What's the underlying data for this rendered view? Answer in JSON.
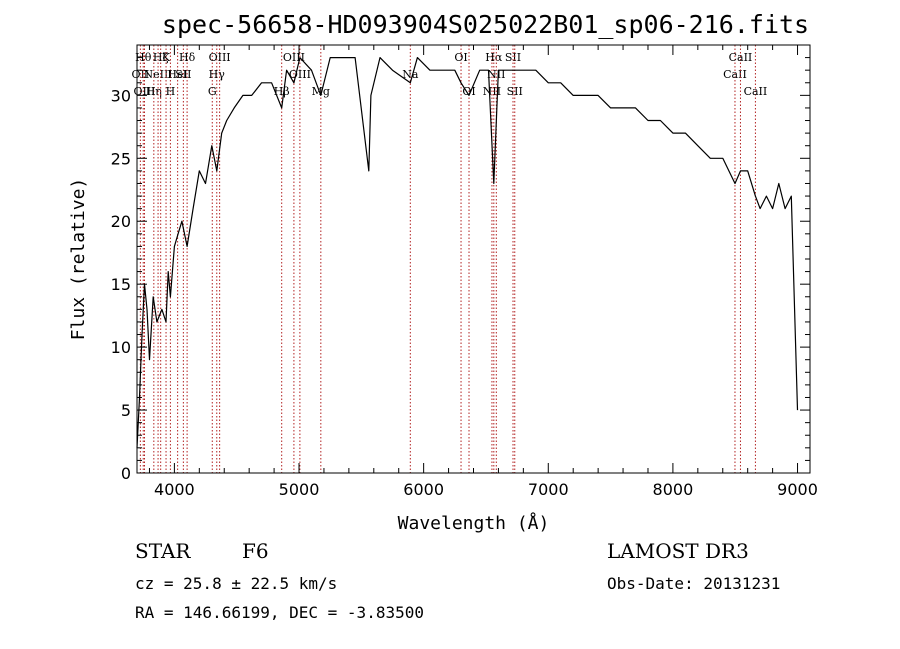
{
  "chart_data": {
    "type": "line",
    "title": "spec-56658-HD093904S025022B01_sp06-216.fits",
    "xlabel": "Wavelength (Å)",
    "ylabel": "Flux (relative)",
    "xlim": [
      3700,
      9100
    ],
    "ylim": [
      0,
      34
    ],
    "xticks": [
      4000,
      5000,
      6000,
      7000,
      8000,
      9000
    ],
    "yticks": [
      0,
      5,
      10,
      15,
      20,
      25,
      30
    ],
    "grid": false,
    "line_color": "#000000",
    "marker_color": "#b22222",
    "series": [
      {
        "x": [
          3700,
          3720,
          3740,
          3760,
          3780,
          3800,
          3830,
          3860,
          3900,
          3933,
          3950,
          3968,
          4000,
          4030,
          4060,
          4102,
          4150,
          4200,
          4250,
          4300,
          4340,
          4380,
          4420,
          4480,
          4550,
          4620,
          4700,
          4780,
          4861,
          4900,
          4959,
          5007,
          5100,
          5175,
          5250,
          5350,
          5450,
          5560,
          5577,
          5650,
          5750,
          5893,
          5950,
          6050,
          6150,
          6250,
          6300,
          6364,
          6450,
          6520,
          6563,
          6600,
          6650,
          6717,
          6731,
          6800,
          6900,
          7000,
          7100,
          7200,
          7300,
          7400,
          7500,
          7600,
          7700,
          7800,
          7900,
          8000,
          8100,
          8200,
          8300,
          8400,
          8498,
          8542,
          8600,
          8662,
          8700,
          8750,
          8800,
          8850,
          8900,
          8950,
          9000
        ],
        "y": [
          2,
          6,
          11,
          15,
          13,
          9,
          14,
          12,
          13,
          12,
          16,
          14,
          18,
          19,
          20,
          18,
          21,
          24,
          23,
          26,
          24,
          27,
          28,
          29,
          30,
          30,
          31,
          31,
          29,
          32,
          31,
          33,
          32,
          30,
          33,
          33,
          33,
          24,
          30,
          33,
          32,
          31,
          33,
          32,
          32,
          32,
          31,
          30,
          32,
          32,
          23,
          32,
          32,
          32,
          32,
          32,
          32,
          31,
          31,
          30,
          30,
          30,
          29,
          29,
          29,
          28,
          28,
          27,
          27,
          26,
          25,
          25,
          23,
          24,
          24,
          22,
          21,
          22,
          21,
          23,
          21,
          22,
          5
        ]
      }
    ],
    "line_markers": [
      {
        "wl": 3727,
        "label": "OII",
        "row": 2
      },
      {
        "wl": 3750,
        "label": "Hθ",
        "row": 1
      },
      {
        "wl": 3760,
        "label": "OIII",
        "row": 3
      },
      {
        "wl": 3835,
        "label": "Hη",
        "row": 3
      },
      {
        "wl": 3869,
        "label": "NeIII",
        "row": 2
      },
      {
        "wl": 3890,
        "label": "Hζ",
        "row": 1
      },
      {
        "wl": 3933,
        "label": "K",
        "row": 1
      },
      {
        "wl": 3968,
        "label": "H",
        "row": 3
      },
      {
        "wl": 4026,
        "label": "HeI",
        "row": 2
      },
      {
        "wl": 4072,
        "label": "SII",
        "row": 2
      },
      {
        "wl": 4102,
        "label": "Hδ",
        "row": 1
      },
      {
        "wl": 4304,
        "label": "G",
        "row": 3
      },
      {
        "wl": 4340,
        "label": "Hγ",
        "row": 2
      },
      {
        "wl": 4363,
        "label": "OIII",
        "row": 1
      },
      {
        "wl": 4861,
        "label": "Hβ",
        "row": 3
      },
      {
        "wl": 4959,
        "label": "OIII",
        "row": 1
      },
      {
        "wl": 5007,
        "label": "OIII",
        "row": 2
      },
      {
        "wl": 5175,
        "label": "Mg",
        "row": 3
      },
      {
        "wl": 5893,
        "label": "Na",
        "row": 2
      },
      {
        "wl": 6300,
        "label": "OI",
        "row": 1
      },
      {
        "wl": 6364,
        "label": "OI",
        "row": 3
      },
      {
        "wl": 6548,
        "label": "NII",
        "row": 3
      },
      {
        "wl": 6563,
        "label": "Hα",
        "row": 1
      },
      {
        "wl": 6583,
        "label": "NII",
        "row": 2
      },
      {
        "wl": 6717,
        "label": "SII",
        "row": 1
      },
      {
        "wl": 6731,
        "label": "SII",
        "row": 3
      },
      {
        "wl": 8498,
        "label": "CaII",
        "row": 2
      },
      {
        "wl": 8542,
        "label": "CaII",
        "row": 1
      },
      {
        "wl": 8662,
        "label": "CaII",
        "row": 3
      }
    ]
  },
  "info": {
    "object_type": "STAR",
    "subclass": "F6",
    "survey": "LAMOST DR3",
    "redshift": "cz = 25.8 ± 22.5 km/s",
    "obs_date": "Obs-Date: 20131231",
    "coords": "RA = 146.66199, DEC =  -3.83500"
  }
}
